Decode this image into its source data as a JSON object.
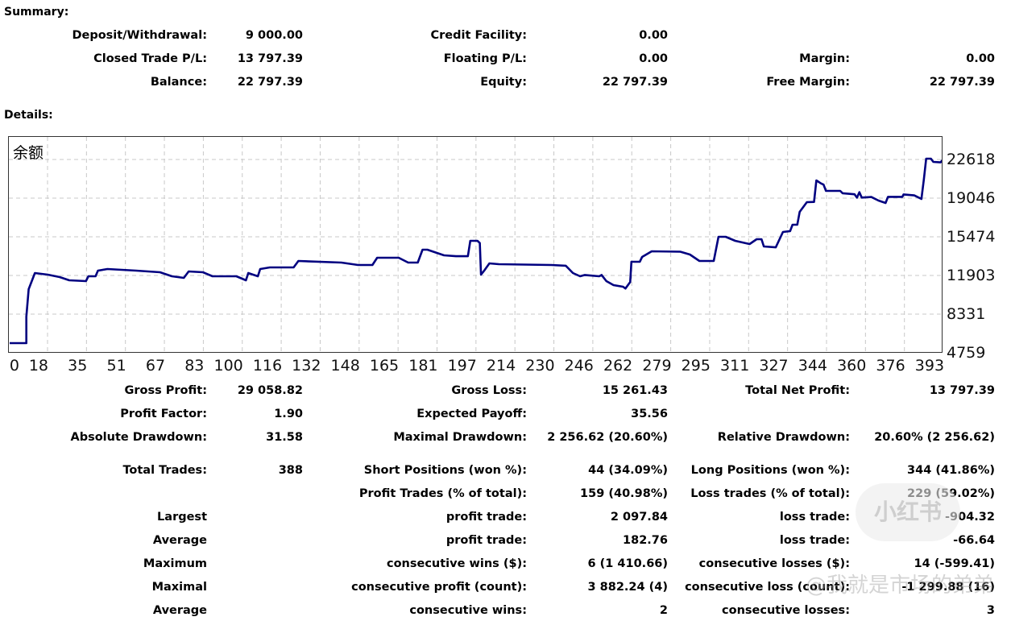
{
  "summary": {
    "heading": "Summary:",
    "rows": [
      [
        "Deposit/Withdrawal:",
        "9 000.00",
        "Credit Facility:",
        "0.00",
        "",
        ""
      ],
      [
        "Closed Trade P/L:",
        "13 797.39",
        "Floating P/L:",
        "0.00",
        "Margin:",
        "0.00"
      ],
      [
        "Balance:",
        "22 797.39",
        "Equity:",
        "22 797.39",
        "Free Margin:",
        "22 797.39"
      ]
    ]
  },
  "details": {
    "heading": "Details:",
    "rows": [
      [
        "Gross Profit:",
        "29 058.82",
        "Gross Loss:",
        "15 261.43",
        "Total Net Profit:",
        "13 797.39"
      ],
      [
        "Profit Factor:",
        "1.90",
        "Expected Payoff:",
        "35.56",
        "",
        ""
      ],
      [
        "Absolute Drawdown:",
        "31.58",
        "Maximal Drawdown:",
        "2 256.62 (20.60%)",
        "Relative Drawdown:",
        "20.60% (2 256.62)"
      ],
      [
        "Total Trades:",
        "388",
        "Short Positions (won %):",
        "44 (34.09%)",
        "Long Positions (won %):",
        "344 (41.86%)"
      ],
      [
        "",
        "",
        "Profit Trades (% of total):",
        "159 (40.98%)",
        "Loss trades (% of total):",
        "229 (59.02%)"
      ],
      [
        "Largest",
        "",
        "profit trade:",
        "2 097.84",
        "loss trade:",
        "-904.32"
      ],
      [
        "Average",
        "",
        "profit trade:",
        "182.76",
        "loss trade:",
        "-66.64"
      ],
      [
        "Maximum",
        "",
        "consecutive wins ($):",
        "6 (1 410.66)",
        "consecutive losses ($):",
        "14 (-599.41)"
      ],
      [
        "Maximal",
        "",
        "consecutive profit (count):",
        "3 882.24 (4)",
        "consecutive loss (count):",
        "-1 299.88 (16)"
      ],
      [
        "Average",
        "",
        "consecutive wins:",
        "2",
        "consecutive losses:",
        "3"
      ]
    ]
  },
  "watermark": {
    "handle": "@我就是市场的弟弟",
    "logo": "小红书"
  },
  "chart_data": {
    "type": "line",
    "title": "余额",
    "xlabel": "",
    "ylabel": "",
    "x_ticks": [
      "0",
      "18",
      "35",
      "51",
      "67",
      "83",
      "100",
      "116",
      "132",
      "148",
      "165",
      "181",
      "197",
      "214",
      "230",
      "246",
      "262",
      "279",
      "295",
      "311",
      "327",
      "344",
      "360",
      "376",
      "393"
    ],
    "y_ticks": [
      "22618",
      "19046",
      "15474",
      "11903",
      "8331",
      "4759"
    ],
    "xlim": [
      0,
      393
    ],
    "ylim": [
      4759,
      24400
    ],
    "grid": true,
    "color": "#000080",
    "series": [
      {
        "name": "余额",
        "points": [
          [
            2,
            5650
          ],
          [
            9,
            5650
          ],
          [
            9,
            8100
          ],
          [
            10,
            10640
          ],
          [
            12.6,
            12125
          ],
          [
            18,
            11976
          ],
          [
            23,
            11753
          ],
          [
            27,
            11455
          ],
          [
            34,
            11380
          ],
          [
            35,
            11827
          ],
          [
            38,
            11827
          ],
          [
            39,
            12348
          ],
          [
            43,
            12497
          ],
          [
            55,
            12348
          ],
          [
            65,
            12200
          ],
          [
            70,
            11827
          ],
          [
            75,
            11678
          ],
          [
            77,
            12274
          ],
          [
            83,
            12200
          ],
          [
            87,
            11827
          ],
          [
            97,
            11827
          ],
          [
            101,
            11455
          ],
          [
            102,
            12125
          ],
          [
            106,
            11827
          ],
          [
            107,
            12497
          ],
          [
            111,
            12646
          ],
          [
            121,
            12646
          ],
          [
            123,
            13240
          ],
          [
            141,
            13092
          ],
          [
            148,
            12869
          ],
          [
            154,
            12869
          ],
          [
            156,
            13538
          ],
          [
            165,
            13538
          ],
          [
            169,
            13092
          ],
          [
            173,
            13092
          ],
          [
            175,
            14282
          ],
          [
            177,
            14282
          ],
          [
            181,
            13984
          ],
          [
            184,
            13760
          ],
          [
            189,
            13680
          ],
          [
            194,
            13680
          ],
          [
            195,
            15101
          ],
          [
            198,
            15101
          ],
          [
            199,
            14900
          ],
          [
            199.5,
            11976
          ],
          [
            201,
            12400
          ],
          [
            203,
            13017
          ],
          [
            207,
            12943
          ],
          [
            229,
            12869
          ],
          [
            235,
            12800
          ],
          [
            238,
            12125
          ],
          [
            241,
            11827
          ],
          [
            243,
            11950
          ],
          [
            249,
            11827
          ],
          [
            250,
            11950
          ],
          [
            252,
            11380
          ],
          [
            255,
            11008
          ],
          [
            259,
            10860
          ],
          [
            260,
            10700
          ],
          [
            262,
            11300
          ],
          [
            262.5,
            13166
          ],
          [
            266,
            13166
          ],
          [
            267,
            13612
          ],
          [
            271,
            14134
          ],
          [
            283,
            14100
          ],
          [
            287,
            13835
          ],
          [
            291,
            13240
          ],
          [
            297,
            13240
          ],
          [
            299,
            15473
          ],
          [
            302,
            15473
          ],
          [
            306,
            15101
          ],
          [
            312,
            14803
          ],
          [
            315,
            15250
          ],
          [
            317,
            15250
          ],
          [
            318,
            14580
          ],
          [
            323,
            14500
          ],
          [
            326,
            15919
          ],
          [
            329,
            16000
          ],
          [
            330,
            16589
          ],
          [
            332,
            16589
          ],
          [
            333,
            17780
          ],
          [
            336,
            18672
          ],
          [
            339,
            18700
          ],
          [
            340,
            20680
          ],
          [
            342,
            20400
          ],
          [
            343,
            20300
          ],
          [
            344,
            19714
          ],
          [
            350,
            19714
          ],
          [
            351,
            19500
          ],
          [
            356,
            19400
          ],
          [
            357,
            19090
          ],
          [
            358,
            19600
          ],
          [
            359,
            19100
          ],
          [
            363,
            19150
          ],
          [
            366,
            18820
          ],
          [
            369,
            18600
          ],
          [
            370,
            19164
          ],
          [
            376,
            19164
          ],
          [
            376.5,
            19388
          ],
          [
            381,
            19300
          ],
          [
            384,
            18970
          ],
          [
            385,
            20755
          ],
          [
            386,
            22690
          ],
          [
            388,
            22690
          ],
          [
            389,
            22392
          ],
          [
            392,
            22350
          ],
          [
            393,
            22600
          ]
        ]
      }
    ]
  }
}
